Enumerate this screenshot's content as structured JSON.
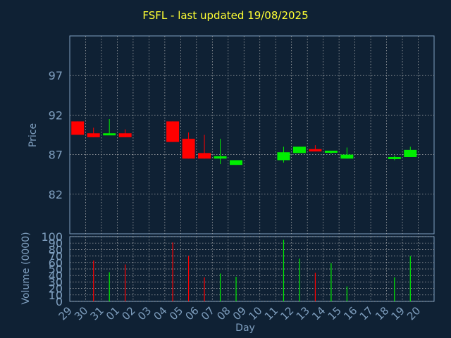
{
  "chart_data": [
    {
      "type": "candlestick",
      "title": "FSFL - last updated 19/08/2025",
      "ylabel": "Price",
      "ylim": [
        77,
        102
      ],
      "yticks": [
        82,
        87,
        92,
        97
      ],
      "grid": true,
      "colors": {
        "up": "#00ee00",
        "down": "#ff0000",
        "background": "#0f2134",
        "plot": "#0f2134",
        "grid": "#bbbbbb",
        "axis": "#7f9fbf",
        "title": "#ffff33"
      },
      "categories": [
        "29",
        "30",
        "31",
        "01",
        "02",
        "03",
        "04",
        "05",
        "06",
        "07",
        "08",
        "09",
        "10",
        "11",
        "12",
        "13",
        "14",
        "15",
        "16",
        "17",
        "18",
        "19",
        "20"
      ],
      "candles": [
        {
          "day": "29",
          "open": 91.2,
          "close": 89.5,
          "high": 91.2,
          "low": 89.5
        },
        {
          "day": "30",
          "open": 89.7,
          "close": 89.2,
          "high": 90.4,
          "low": 89.2
        },
        {
          "day": "31",
          "open": 89.5,
          "close": 89.7,
          "high": 91.5,
          "low": 89.5
        },
        {
          "day": "01",
          "open": 89.7,
          "close": 89.2,
          "high": 90.2,
          "low": 89.2
        },
        {
          "day": "04",
          "open": 91.2,
          "close": 88.6,
          "high": 91.2,
          "low": 88.6
        },
        {
          "day": "05",
          "open": 89.0,
          "close": 86.5,
          "high": 89.8,
          "low": 86.5
        },
        {
          "day": "06",
          "open": 87.2,
          "close": 86.5,
          "high": 89.5,
          "low": 86.5
        },
        {
          "day": "07",
          "open": 86.5,
          "close": 86.8,
          "high": 89.0,
          "low": 85.8
        },
        {
          "day": "08",
          "open": 85.7,
          "close": 86.3,
          "high": 86.3,
          "low": 85.7
        },
        {
          "day": "11",
          "open": 86.3,
          "close": 87.3,
          "high": 88.0,
          "low": 86.0
        },
        {
          "day": "12",
          "open": 87.2,
          "close": 88.0,
          "high": 88.0,
          "low": 87.2
        },
        {
          "day": "13",
          "open": 87.7,
          "close": 87.4,
          "high": 88.2,
          "low": 87.4
        },
        {
          "day": "14",
          "open": 87.3,
          "close": 87.5,
          "high": 87.5,
          "low": 87.1
        },
        {
          "day": "15",
          "open": 86.5,
          "close": 87.0,
          "high": 87.9,
          "low": 86.5
        },
        {
          "day": "18",
          "open": 86.5,
          "close": 86.7,
          "high": 86.9,
          "low": 86.3
        },
        {
          "day": "19",
          "open": 86.7,
          "close": 87.6,
          "high": 88.0,
          "low": 86.7
        }
      ]
    },
    {
      "type": "bar",
      "ylabel": "Volume (0000)",
      "xlabel": "Day",
      "ylim": [
        0,
        100
      ],
      "yticks": [
        0,
        10,
        20,
        30,
        40,
        50,
        60,
        70,
        80,
        90,
        100
      ],
      "categories": [
        "29",
        "30",
        "31",
        "01",
        "02",
        "03",
        "04",
        "05",
        "06",
        "07",
        "08",
        "09",
        "10",
        "11",
        "12",
        "13",
        "14",
        "15",
        "16",
        "17",
        "18",
        "19",
        "20"
      ],
      "values": [
        {
          "day": "30",
          "value": 63,
          "direction": "down"
        },
        {
          "day": "31",
          "value": 45,
          "direction": "up"
        },
        {
          "day": "01",
          "value": 57,
          "direction": "down"
        },
        {
          "day": "04",
          "value": 91,
          "direction": "down"
        },
        {
          "day": "05",
          "value": 70,
          "direction": "down"
        },
        {
          "day": "06",
          "value": 37,
          "direction": "down"
        },
        {
          "day": "07",
          "value": 43,
          "direction": "up"
        },
        {
          "day": "08",
          "value": 38,
          "direction": "up"
        },
        {
          "day": "11",
          "value": 95,
          "direction": "up"
        },
        {
          "day": "12",
          "value": 66,
          "direction": "up"
        },
        {
          "day": "13",
          "value": 44,
          "direction": "down"
        },
        {
          "day": "14",
          "value": 59,
          "direction": "up"
        },
        {
          "day": "15",
          "value": 23,
          "direction": "up"
        },
        {
          "day": "18",
          "value": 37,
          "direction": "up"
        },
        {
          "day": "19",
          "value": 70,
          "direction": "up"
        }
      ]
    }
  ]
}
